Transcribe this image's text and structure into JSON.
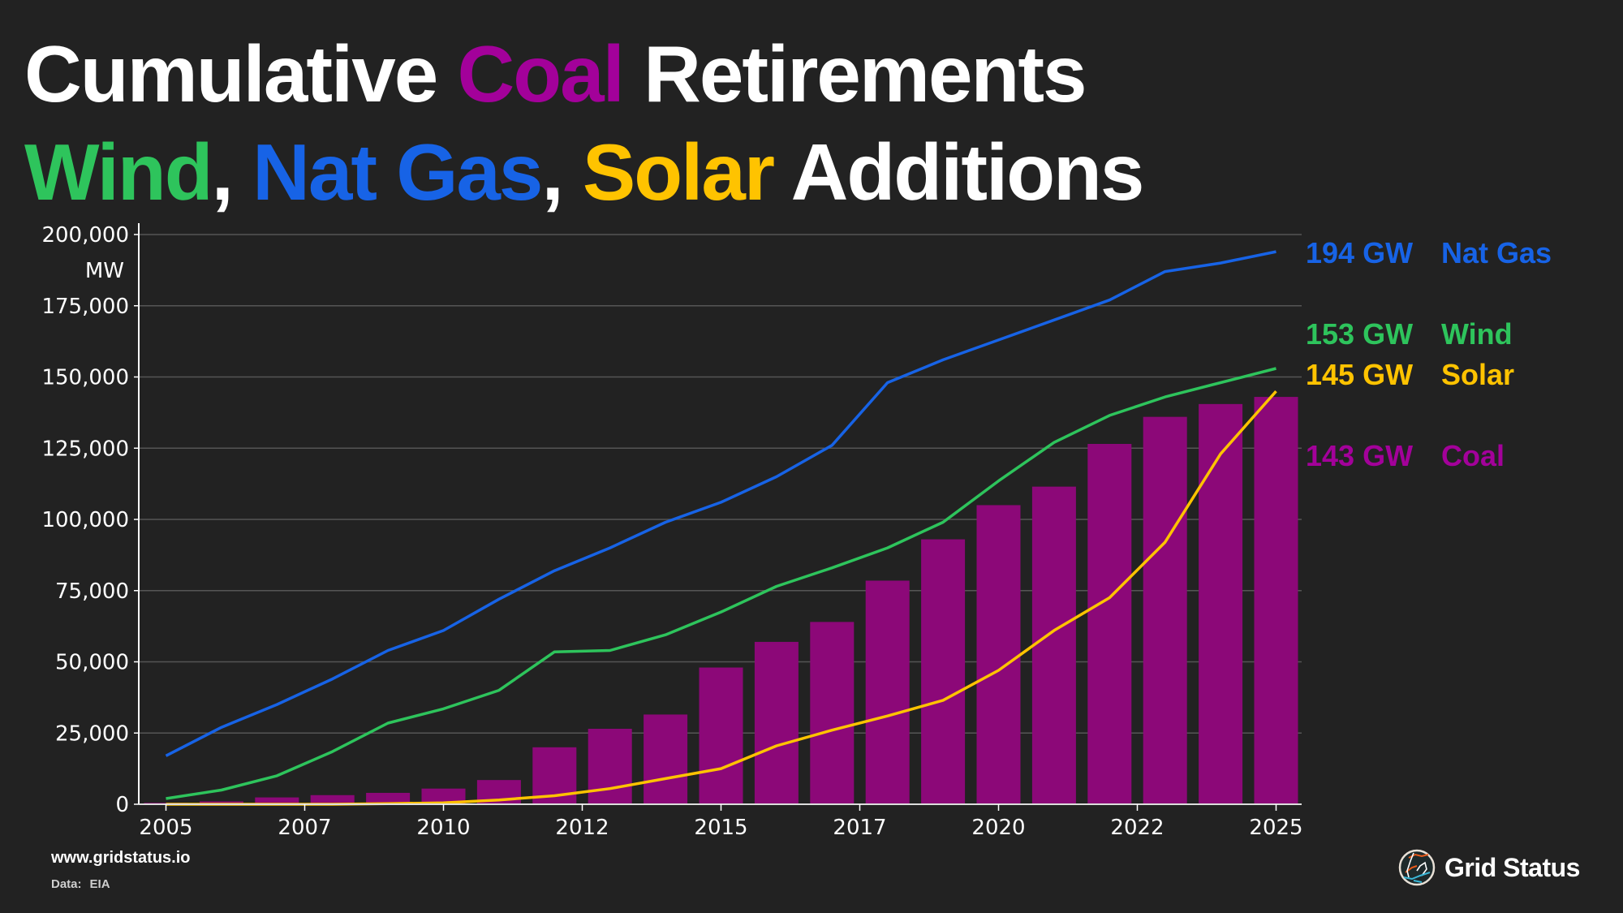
{
  "title": {
    "line1": [
      {
        "text": "Cumulative ",
        "color": "#ffffff"
      },
      {
        "text": "Coal",
        "color": "#a3019a"
      },
      {
        "text": " Retirements",
        "color": "#ffffff"
      }
    ],
    "line2": [
      {
        "text": "Wind",
        "color": "#2ec45c"
      },
      {
        "text": ", ",
        "color": "#ffffff"
      },
      {
        "text": "Nat Gas",
        "color": "#1763e6"
      },
      {
        "text": ", ",
        "color": "#ffffff"
      },
      {
        "text": "Solar",
        "color": "#ffc300"
      },
      {
        "text": " Additions",
        "color": "#ffffff"
      }
    ]
  },
  "chart_data": {
    "type": "bar+line",
    "title": "Cumulative Coal Retirements; Wind, Nat Gas, Solar Additions",
    "xlabel": "",
    "ylabel": "MW",
    "x": [
      2005,
      2006,
      2007,
      2008,
      2009,
      2010,
      2011,
      2012,
      2013,
      2014,
      2015,
      2016,
      2017,
      2018,
      2019,
      2020,
      2021,
      2022,
      2023,
      2024,
      2025
    ],
    "xticks": [
      2005,
      2007.5,
      2010,
      2012.5,
      2015,
      2017.5,
      2020,
      2022.5,
      2025
    ],
    "xtick_labels": [
      "2005",
      "2007",
      "2010",
      "2012",
      "2015",
      "2017",
      "2020",
      "2022",
      "2025"
    ],
    "ylim": [
      0,
      200000
    ],
    "yticks": [
      0,
      25000,
      50000,
      75000,
      100000,
      125000,
      150000,
      175000,
      200000
    ],
    "ytick_labels": [
      "0",
      "25,000",
      "50,000",
      "75,000",
      "100,000",
      "125,000",
      "150,000",
      "175,000",
      "200,000"
    ],
    "grid": true,
    "series": [
      {
        "name": "Coal",
        "kind": "bar",
        "color": "#8c0878",
        "end_label": "143 GW",
        "values": [
          500,
          1000,
          2400,
          3200,
          4000,
          5500,
          8500,
          20000,
          26500,
          31500,
          48000,
          57000,
          64000,
          78500,
          93000,
          105000,
          111500,
          126500,
          136000,
          140500,
          143000
        ]
      },
      {
        "name": "Nat Gas",
        "kind": "line",
        "color": "#1763e6",
        "end_label": "194 GW",
        "values": [
          17000,
          27000,
          35000,
          44000,
          54000,
          61000,
          72000,
          82000,
          90000,
          99000,
          106000,
          115000,
          126000,
          148000,
          156000,
          163000,
          170000,
          177000,
          187000,
          190000,
          194000
        ]
      },
      {
        "name": "Wind",
        "kind": "line",
        "color": "#2ec45c",
        "end_label": "153 GW",
        "values": [
          2000,
          5000,
          10000,
          18500,
          28500,
          33500,
          40000,
          53500,
          54000,
          59500,
          67500,
          76500,
          83000,
          90000,
          99000,
          113500,
          127000,
          136500,
          143000,
          148000,
          153000
        ]
      },
      {
        "name": "Solar",
        "kind": "line",
        "color": "#ffc300",
        "end_label": "145 GW",
        "values": [
          0,
          0,
          0,
          0,
          200,
          500,
          1500,
          3000,
          5500,
          9000,
          12500,
          20500,
          26000,
          31000,
          36500,
          47000,
          61000,
          72500,
          92000,
          123000,
          145000
        ]
      }
    ],
    "legend": "right-end labels"
  },
  "end_labels": [
    {
      "value": "194 GW",
      "name": "Nat Gas",
      "color": "#1763e6"
    },
    {
      "value": "153 GW",
      "name": "Wind",
      "color": "#2ec45c"
    },
    {
      "value": "145 GW",
      "name": "Solar",
      "color": "#ffc300"
    },
    {
      "value": "143 GW",
      "name": "Coal",
      "color": "#a3019a"
    }
  ],
  "footer": {
    "url": "www.gridstatus.io",
    "source_label": "Data:",
    "source": "EIA"
  },
  "brand": {
    "name": "Grid Status",
    "icon": "grid-status-logo-icon"
  }
}
